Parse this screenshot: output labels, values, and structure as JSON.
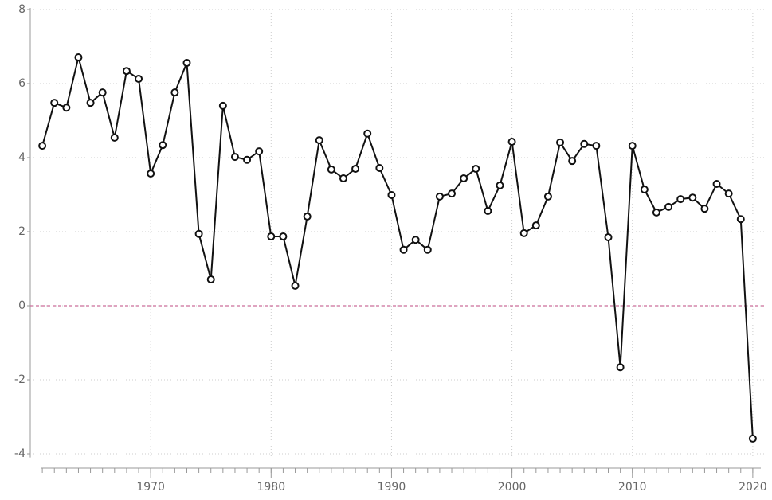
{
  "chart_data": {
    "type": "line",
    "x": [
      1961,
      1962,
      1963,
      1964,
      1965,
      1966,
      1967,
      1968,
      1969,
      1970,
      1971,
      1972,
      1973,
      1974,
      1975,
      1976,
      1977,
      1978,
      1979,
      1980,
      1981,
      1982,
      1983,
      1984,
      1985,
      1986,
      1987,
      1988,
      1989,
      1990,
      1991,
      1992,
      1993,
      1994,
      1995,
      1996,
      1997,
      1998,
      1999,
      2000,
      2001,
      2002,
      2003,
      2004,
      2005,
      2006,
      2007,
      2008,
      2009,
      2010,
      2011,
      2012,
      2013,
      2014,
      2015,
      2016,
      2017,
      2018,
      2019,
      2020
    ],
    "series": [
      {
        "color": "#111111",
        "values": [
          4.32,
          5.48,
          5.35,
          6.71,
          5.48,
          5.76,
          4.54,
          6.34,
          6.13,
          3.57,
          4.34,
          5.76,
          6.56,
          1.94,
          0.71,
          5.4,
          4.02,
          3.94,
          4.17,
          1.87,
          1.87,
          0.54,
          2.41,
          4.47,
          3.68,
          3.44,
          3.7,
          4.65,
          3.72,
          2.99,
          1.51,
          1.78,
          1.51,
          2.95,
          3.03,
          3.44,
          3.7,
          2.56,
          3.25,
          4.43,
          1.96,
          2.17,
          2.95,
          4.41,
          3.91,
          4.37,
          4.32,
          1.85,
          -1.66,
          4.32,
          3.14,
          2.52,
          2.67,
          2.88,
          2.92,
          2.62,
          3.29,
          3.03,
          2.34,
          -3.59
        ]
      }
    ],
    "xlim": [
      1960,
      2021
    ],
    "xticks": [
      1970,
      1980,
      1990,
      2000,
      2010,
      2020
    ],
    "x_minor_step": 1,
    "ylim": [
      -4.1,
      8
    ],
    "yticks": [
      -4,
      -2,
      0,
      2,
      4,
      6,
      8
    ],
    "grid": true,
    "reference_line": {
      "y": 0,
      "color": "#cc6e9a"
    }
  }
}
